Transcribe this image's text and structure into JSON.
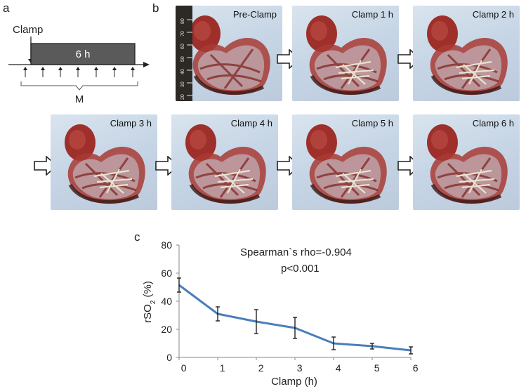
{
  "panel_a": {
    "label": "a",
    "clamp_label": "Clamp",
    "duration_label": "6 h",
    "measure_label": "M"
  },
  "panel_b": {
    "label": "b",
    "photos": [
      {
        "caption": "Pre-Clamp"
      },
      {
        "caption": "Clamp 1 h"
      },
      {
        "caption": "Clamp 2 h"
      },
      {
        "caption": "Clamp 3 h"
      },
      {
        "caption": "Clamp 4 h"
      },
      {
        "caption": "Clamp 5 h"
      },
      {
        "caption": "Clamp 6 h"
      }
    ],
    "ruler_ticks": [
      "20",
      "30",
      "40",
      "50",
      "60",
      "70",
      "80"
    ]
  },
  "panel_c": {
    "label": "c"
  },
  "chart_data": {
    "type": "line",
    "x": [
      0,
      1,
      2,
      3,
      4,
      5,
      6
    ],
    "y": [
      51.5,
      31,
      25.5,
      21,
      10,
      8,
      5
    ],
    "yerr": [
      5,
      5,
      8.5,
      7.5,
      4.5,
      2,
      2.5
    ],
    "xlabel": "Clamp (h)",
    "ylabel": "rSO2 (%)",
    "ylabel_main": "rSO",
    "ylabel_sub": "2",
    "ylabel_tail": " (%)",
    "xlim": [
      0,
      6
    ],
    "ylim": [
      0,
      80
    ],
    "yticks": [
      0,
      20,
      40,
      60,
      80
    ],
    "xticks": [
      0,
      1,
      2,
      3,
      4,
      5,
      6
    ],
    "series_color": "#4a7ebb",
    "annotation_1": "Spearman`s rho=-0.904",
    "annotation_2": "p<0.001"
  }
}
